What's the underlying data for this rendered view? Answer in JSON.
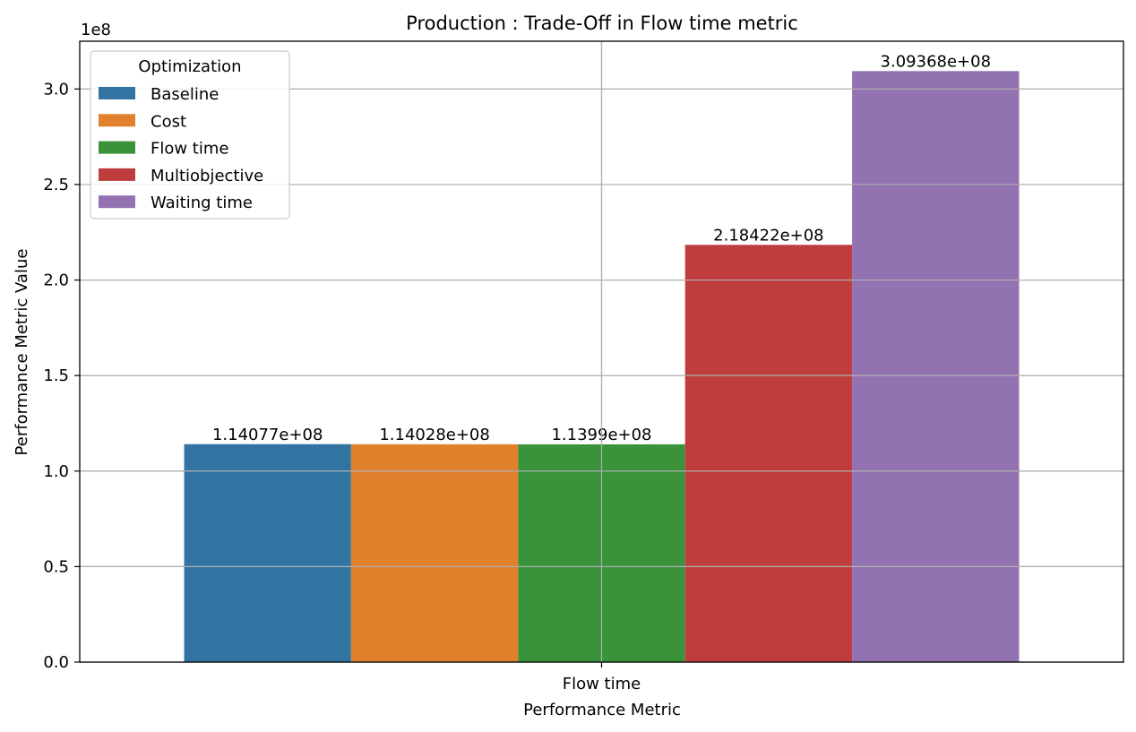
{
  "chart_data": {
    "type": "bar",
    "title": "Production : Trade-Off in Flow time metric",
    "xlabel": "Performance Metric",
    "ylabel": "Performance Metric Value",
    "y_offset_label": "1e8",
    "ylim": [
      0,
      325000000
    ],
    "yticks": [
      0,
      50000000,
      100000000,
      150000000,
      200000000,
      250000000,
      300000000
    ],
    "ytick_labels": [
      "0.0",
      "0.5",
      "1.0",
      "1.5",
      "2.0",
      "2.5",
      "3.0"
    ],
    "categories": [
      "Flow time"
    ],
    "grid": true,
    "legend": {
      "title": "Optimization",
      "position": "top-left"
    },
    "series": [
      {
        "name": "Baseline",
        "color": "#3274a1",
        "values": [
          114077000
        ],
        "label": "1.14077e+08"
      },
      {
        "name": "Cost",
        "color": "#e1812c",
        "values": [
          114028000
        ],
        "label": "1.14028e+08"
      },
      {
        "name": "Flow time",
        "color": "#3a923a",
        "values": [
          113990000
        ],
        "label": "1.1399e+08"
      },
      {
        "name": "Multiobjective",
        "color": "#c03d3e",
        "values": [
          218422000
        ],
        "label": "2.18422e+08"
      },
      {
        "name": "Waiting time",
        "color": "#9372b2",
        "values": [
          309368000
        ],
        "label": "3.09368e+08"
      }
    ]
  }
}
